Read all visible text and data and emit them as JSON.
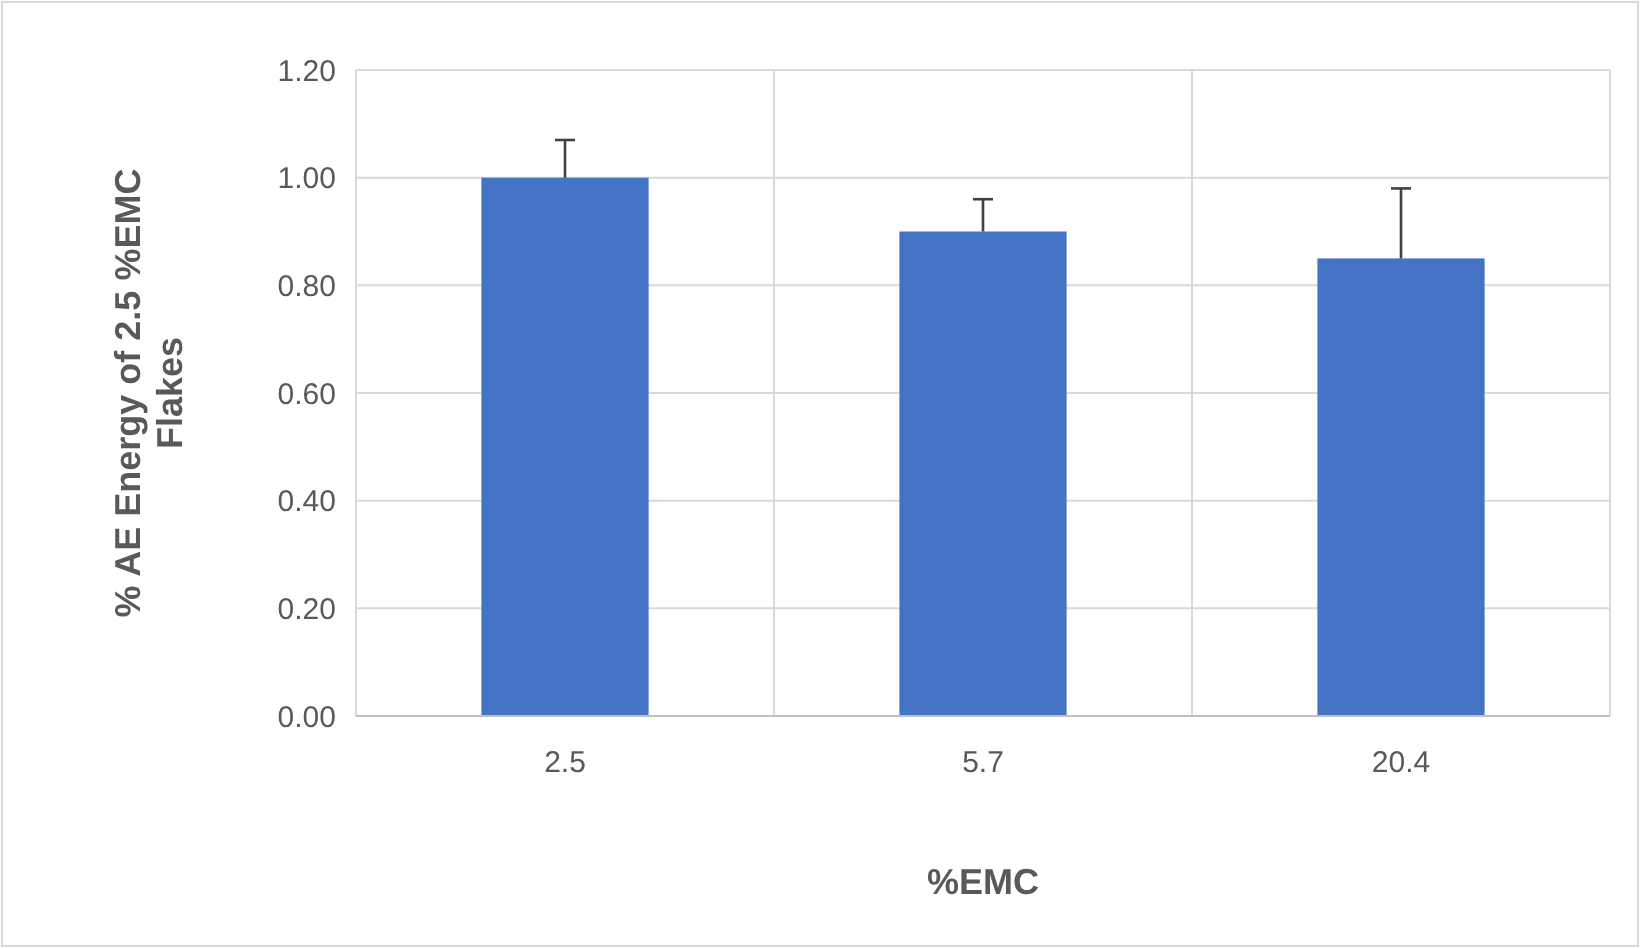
{
  "chart_data": {
    "type": "bar",
    "ylabel": "% AE Energy of 2.5 %EMC Flakes",
    "xlabel": "%EMC",
    "categories": [
      "2.5",
      "5.7",
      "20.4"
    ],
    "values": [
      1.0,
      0.9,
      0.85
    ],
    "errors": [
      [
        1.0,
        1.07
      ],
      [
        0.9,
        0.96
      ],
      [
        0.85,
        0.98
      ]
    ],
    "color": "#4472c4",
    "ylim": [
      0,
      1.2
    ],
    "yticks": [
      {
        "value": 0,
        "label": "0.00"
      },
      {
        "value": 0.2,
        "label": "0.20"
      },
      {
        "value": 0.4,
        "label": "0.40"
      },
      {
        "value": 0.6,
        "label": "0.60"
      },
      {
        "value": 0.8,
        "label": "0.80"
      },
      {
        "value": 1.0,
        "label": "1.00"
      },
      {
        "value": 1.2,
        "label": "1.20"
      }
    ],
    "grid": true
  }
}
